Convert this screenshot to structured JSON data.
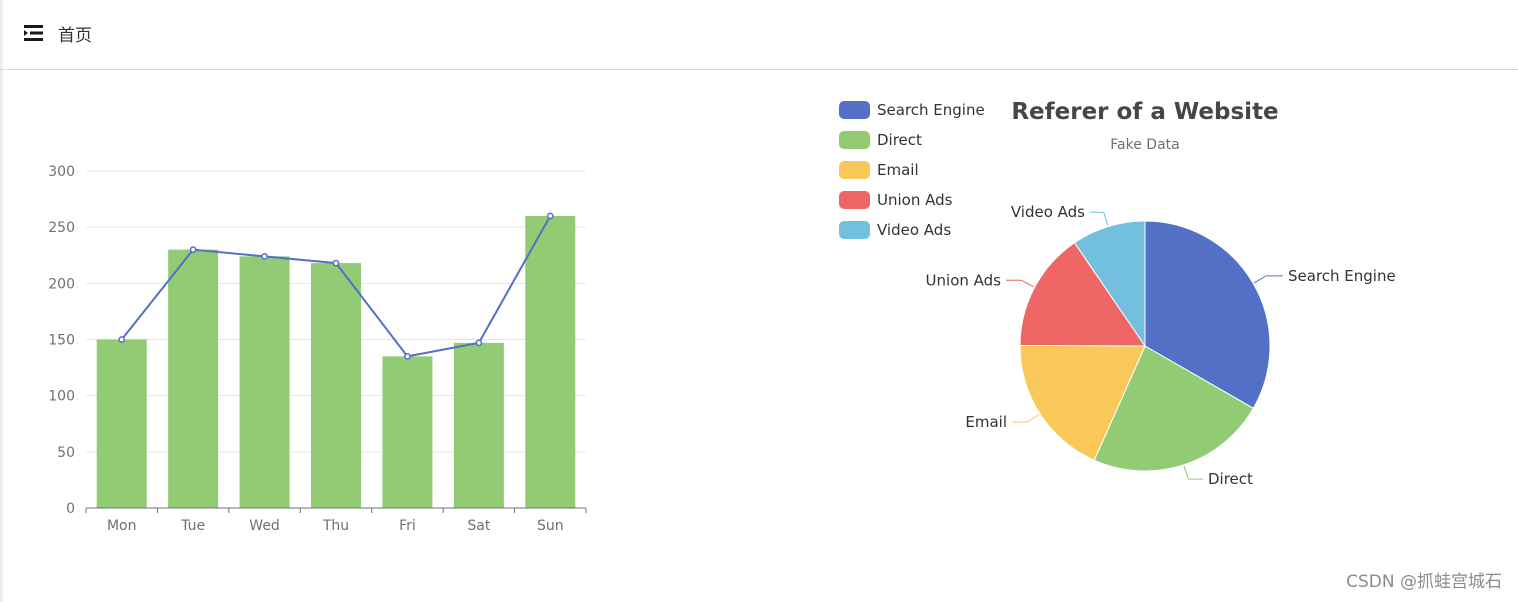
{
  "header": {
    "menu_icon": "menu-fold-icon",
    "title": "首页"
  },
  "watermark": "CSDN @抓蛙宫城石",
  "colors": {
    "bar": "#91cc75",
    "line": "#5470c6",
    "palette": [
      "#5470c6",
      "#91cc75",
      "#fac858",
      "#ee6666",
      "#73c0de"
    ]
  },
  "chart_data": [
    {
      "type": "bar",
      "categories": [
        "Mon",
        "Tue",
        "Wed",
        "Thu",
        "Fri",
        "Sat",
        "Sun"
      ],
      "series": [
        {
          "type": "bar",
          "values": [
            150,
            230,
            224,
            218,
            135,
            147,
            260
          ]
        },
        {
          "type": "line",
          "values": [
            150,
            230,
            224,
            218,
            135,
            147,
            260
          ]
        }
      ],
      "ylim": [
        0,
        300
      ],
      "yticks": [
        0,
        50,
        100,
        150,
        200,
        250,
        300
      ],
      "grid": true
    },
    {
      "type": "pie",
      "title": "Referer of a Website",
      "subtitle": "Fake Data",
      "legend_position": "top-left",
      "slices": [
        {
          "name": "Search Engine",
          "value": 1048
        },
        {
          "name": "Direct",
          "value": 735
        },
        {
          "name": "Email",
          "value": 580
        },
        {
          "name": "Union Ads",
          "value": 484
        },
        {
          "name": "Video Ads",
          "value": 300
        }
      ]
    }
  ]
}
